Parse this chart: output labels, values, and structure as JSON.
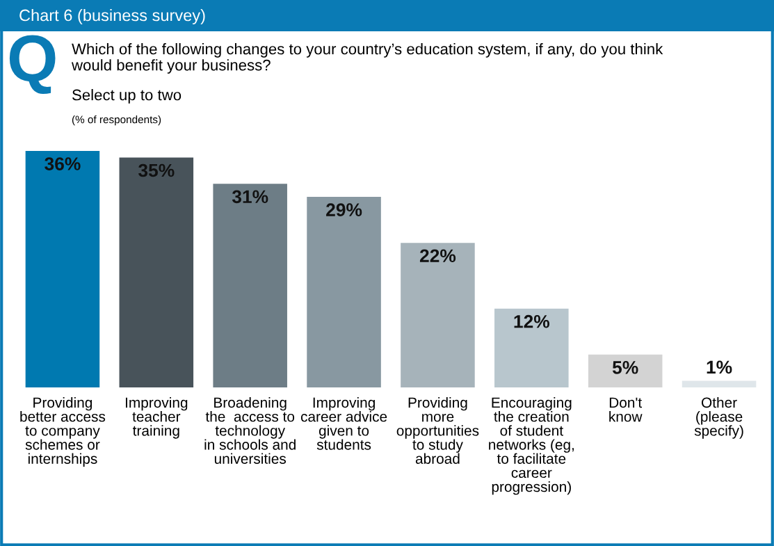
{
  "chart_data": {
    "type": "bar",
    "title": "Chart 6 (business survey)",
    "subtitle": "Which of the following changes to your country’s education system, if any, do you think\nwould benefit your business?",
    "annotations": [
      "Q",
      "Select up to two",
      "(% of respondents)"
    ],
    "categories": [
      "Providing\nbetter access\nto company\nschemes or\ninternships",
      "Improving\nteacher\ntraining",
      "Broadening\nthe  access to\ntechnology\nin schools and\nuniversities",
      "Improving\ncareer advice\ngiven to\nstudents",
      "Providing\nmore\nopportunities\nto study\nabroad",
      "Encouraging\nthe creation\nof student\nnetworks (eg,\nto facilitate\ncareer\nprogression)",
      "Don't\nknow",
      "Other\n(please\nspecify)"
    ],
    "values": [
      36,
      35,
      31,
      29,
      22,
      12,
      5,
      1
    ],
    "colors": [
      "#0079b0",
      "#48535a",
      "#6d7d86",
      "#8898a1",
      "#a6b3ba",
      "#b8c6cd",
      "#d3d3d3",
      "#dfe6ea"
    ],
    "value_labels": [
      "36%",
      "35%",
      "31%",
      "29%",
      "22%",
      "12%",
      "5%",
      "1%"
    ],
    "grid": false,
    "legend": false
  }
}
